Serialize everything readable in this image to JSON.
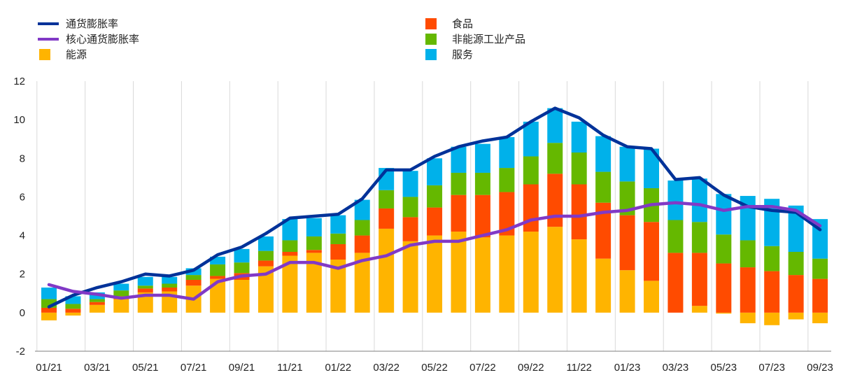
{
  "chart_data": {
    "type": "bar",
    "stacked": true,
    "title": "",
    "xlabel": "",
    "ylabel": "",
    "ylim": [
      -2,
      12
    ],
    "yticks": [
      -2,
      0,
      2,
      4,
      6,
      8,
      10,
      12
    ],
    "grid": "vertical",
    "legend_position": "top",
    "x_tick_labels": [
      "01/21",
      "03/21",
      "05/21",
      "07/21",
      "09/21",
      "11/21",
      "01/22",
      "03/22",
      "05/22",
      "07/22",
      "09/22",
      "11/22",
      "01/23",
      "03/23",
      "05/23",
      "07/23",
      "09/23"
    ],
    "categories": [
      "01/21",
      "02/21",
      "03/21",
      "04/21",
      "05/21",
      "06/21",
      "07/21",
      "08/21",
      "09/21",
      "10/21",
      "11/21",
      "12/21",
      "01/22",
      "02/22",
      "03/22",
      "04/22",
      "05/22",
      "06/22",
      "07/22",
      "08/22",
      "09/22",
      "10/22",
      "11/22",
      "12/22",
      "01/23",
      "02/23",
      "03/23",
      "04/23",
      "05/23",
      "06/23",
      "07/23",
      "08/23",
      "09/23"
    ],
    "series": [
      {
        "name": "能源",
        "kind": "bar",
        "color": "#FFB400",
        "values": [
          -0.4,
          -0.15,
          0.4,
          0.7,
          1.05,
          1.1,
          1.4,
          1.75,
          1.7,
          2.4,
          2.95,
          3.1,
          2.75,
          3.1,
          4.35,
          3.7,
          4.0,
          4.2,
          3.9,
          4.0,
          4.2,
          4.45,
          3.8,
          2.8,
          2.2,
          1.65,
          0.0,
          0.35,
          -0.05,
          -0.55,
          -0.65,
          -0.35,
          -0.55
        ]
      },
      {
        "name": "食品",
        "kind": "bar",
        "color": "#FF4B00",
        "values": [
          0.25,
          0.2,
          0.15,
          0.15,
          0.2,
          0.2,
          0.3,
          0.15,
          0.35,
          0.3,
          0.2,
          0.15,
          0.8,
          0.9,
          1.05,
          1.25,
          1.45,
          1.9,
          2.2,
          2.25,
          2.45,
          2.75,
          2.85,
          2.9,
          2.85,
          3.05,
          3.1,
          2.75,
          2.55,
          2.35,
          2.15,
          1.95,
          1.75
        ]
      },
      {
        "name": "非能源工业产品",
        "kind": "bar",
        "color": "#65B800",
        "values": [
          0.45,
          0.25,
          0.15,
          0.3,
          0.15,
          0.2,
          0.25,
          0.6,
          0.55,
          0.5,
          0.6,
          0.7,
          0.55,
          0.8,
          0.95,
          1.05,
          1.15,
          1.15,
          1.15,
          1.25,
          1.45,
          1.6,
          1.65,
          1.6,
          1.75,
          1.75,
          1.7,
          1.6,
          1.5,
          1.4,
          1.3,
          1.2,
          1.05
        ]
      },
      {
        "name": "服务",
        "kind": "bar",
        "color": "#00B1EA",
        "values": [
          0.6,
          0.4,
          0.35,
          0.35,
          0.45,
          0.35,
          0.35,
          0.4,
          0.7,
          0.75,
          1.1,
          0.95,
          0.95,
          1.05,
          1.15,
          1.35,
          1.4,
          1.35,
          1.5,
          1.6,
          1.8,
          1.8,
          1.6,
          1.85,
          1.8,
          2.05,
          2.05,
          2.25,
          2.1,
          2.3,
          2.45,
          2.4,
          2.05
        ]
      },
      {
        "name": "通货膨胀率",
        "kind": "line",
        "color": "#003299",
        "values": [
          0.3,
          0.9,
          1.3,
          1.6,
          2.0,
          1.9,
          2.2,
          3.0,
          3.4,
          4.1,
          4.9,
          5.0,
          5.1,
          5.9,
          7.4,
          7.4,
          8.1,
          8.6,
          8.9,
          9.1,
          9.9,
          10.6,
          10.1,
          9.2,
          8.6,
          8.5,
          6.9,
          7.0,
          6.1,
          5.5,
          5.3,
          5.2,
          4.3
        ]
      },
      {
        "name": "核心通货膨胀率",
        "kind": "line",
        "color": "#8139C6",
        "values": [
          1.45,
          1.1,
          0.95,
          0.75,
          0.9,
          0.9,
          0.7,
          1.6,
          1.9,
          2.0,
          2.6,
          2.6,
          2.3,
          2.7,
          2.95,
          3.5,
          3.7,
          3.7,
          4.0,
          4.3,
          4.8,
          5.0,
          5.0,
          5.2,
          5.3,
          5.6,
          5.7,
          5.6,
          5.3,
          5.5,
          5.5,
          5.3,
          4.5
        ]
      }
    ]
  },
  "legend": {
    "left": [
      {
        "label": "通货膨胀率",
        "kind": "line",
        "color": "#003299"
      },
      {
        "label": "核心通货膨胀率",
        "kind": "line",
        "color": "#8139C6"
      },
      {
        "label": "能源",
        "kind": "box",
        "color": "#FFB400"
      }
    ],
    "right": [
      {
        "label": "食品",
        "kind": "box",
        "color": "#FF4B00"
      },
      {
        "label": "非能源工业产品",
        "kind": "box",
        "color": "#65B800"
      },
      {
        "label": "服务",
        "kind": "box",
        "color": "#00B1EA"
      }
    ]
  }
}
